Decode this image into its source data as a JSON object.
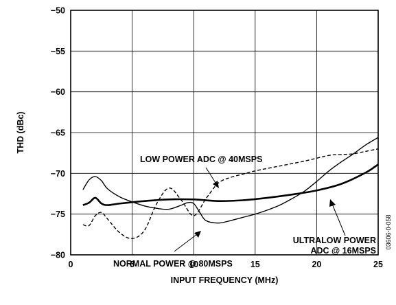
{
  "chart_data": {
    "type": "line",
    "xlabel": "INPUT FREQUENCY (MHz)",
    "ylabel": "THD (dBc)",
    "xlim": [
      0,
      25
    ],
    "ylim": [
      -80,
      -50
    ],
    "x_ticks": [
      0,
      5,
      10,
      15,
      20,
      25
    ],
    "y_ticks": [
      -80,
      -75,
      -70,
      -65,
      -60,
      -55,
      -50
    ],
    "x_tick_labels": [
      "0",
      "5",
      "10",
      "15",
      "20",
      "25"
    ],
    "y_tick_labels": [
      "−80",
      "−75",
      "−70",
      "−65",
      "−60",
      "−55",
      "−50"
    ],
    "grid": true,
    "series": [
      {
        "name": "NORMAL POWER @ 80MSPS",
        "style": "solid",
        "weight": "thick",
        "x": [
          1,
          1.5,
          2,
          2.5,
          3,
          4,
          6,
          8,
          10,
          12,
          14,
          16,
          18,
          20,
          22,
          24,
          25
        ],
        "y": [
          -73.9,
          -73.6,
          -73.0,
          -73.7,
          -73.9,
          -73.7,
          -73.4,
          -73.2,
          -73.2,
          -73.4,
          -73.3,
          -73.0,
          -72.6,
          -72.1,
          -71.3,
          -69.9,
          -68.9
        ]
      },
      {
        "name": "LOW POWER ADC @ 40MSPS",
        "style": "dashed",
        "weight": "normal",
        "x": [
          1,
          1.5,
          2,
          2.5,
          3,
          4,
          5,
          6,
          7,
          8,
          9,
          10,
          11,
          12,
          13,
          14,
          15,
          17,
          19,
          21,
          22,
          23,
          24,
          25
        ],
        "y": [
          -76.3,
          -76.4,
          -75.2,
          -74.8,
          -75.6,
          -77.3,
          -78.0,
          -77.0,
          -73.7,
          -71.8,
          -73.3,
          -75.2,
          -73.1,
          -71.2,
          -70.5,
          -70.1,
          -69.7,
          -69.1,
          -68.5,
          -67.8,
          -67.7,
          -67.6,
          -67.3,
          -67.0
        ]
      },
      {
        "name": "ULTRALOW POWER ADC @ 16MSPS",
        "style": "solid",
        "weight": "normal",
        "x": [
          1,
          1.5,
          2,
          2.5,
          3,
          4,
          5,
          6,
          7,
          8,
          9,
          9.5,
          10,
          10.5,
          11,
          12,
          13,
          14,
          15,
          16,
          17,
          18,
          19,
          20,
          21,
          22,
          23,
          24,
          25
        ],
        "y": [
          -72.0,
          -70.8,
          -70.4,
          -70.9,
          -71.9,
          -72.9,
          -73.5,
          -74.0,
          -74.3,
          -74.4,
          -73.9,
          -73.6,
          -73.7,
          -74.8,
          -75.8,
          -76.1,
          -75.8,
          -75.4,
          -75.0,
          -74.5,
          -73.9,
          -73.1,
          -72.2,
          -71.0,
          -69.7,
          -68.6,
          -67.6,
          -66.5,
          -65.6
        ]
      }
    ],
    "annotations": [
      {
        "text": "LOW POWER ADC @ 40MSPS"
      },
      {
        "text": "NORMAL POWER @ 80MSPS"
      },
      {
        "text_lines": [
          "ULTRALOW POWER",
          "ADC @ 16MSPS"
        ]
      }
    ],
    "figure_code": "03606-0-058"
  }
}
